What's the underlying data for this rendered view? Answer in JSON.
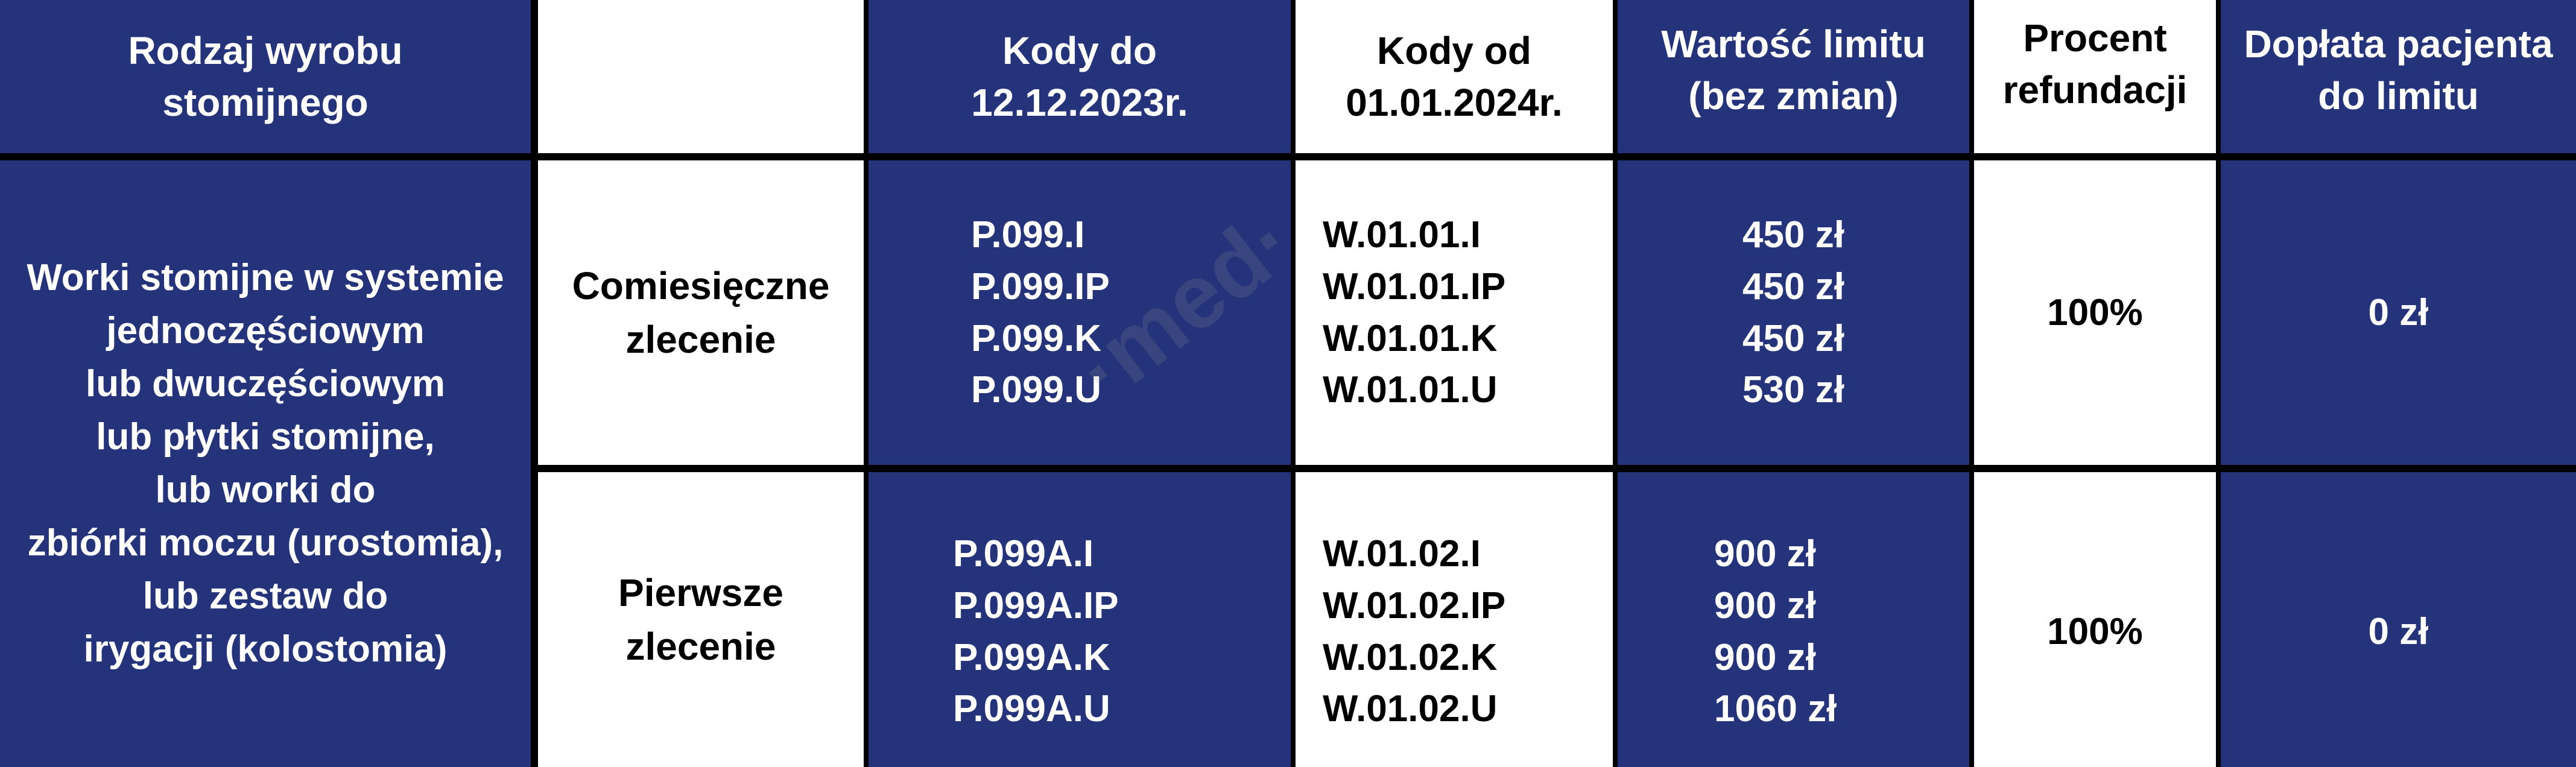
{
  "header": {
    "product_type": [
      "Rodzaj wyrobu",
      "stomijnego"
    ],
    "empty": "",
    "codes_old": [
      "Kody do",
      "12.12.2023r."
    ],
    "codes_new": [
      "Kody od",
      "01.01.2024r."
    ],
    "limit_value": [
      "Wartość limitu",
      "(bez zmian)"
    ],
    "refund_percent": [
      "Procent",
      "refundacji"
    ],
    "patient_copay": [
      "Dopłata pacjenta",
      "do limitu"
    ]
  },
  "product_description": [
    "Worki stomijne w systemie",
    "jednoczęściowym",
    "lub dwuczęściowym",
    "lub płytki stomijne,",
    "lub worki do",
    "zbiórki moczu (urostomia),",
    "lub zestaw do",
    "irygacji (kolostomia)"
  ],
  "rows": [
    {
      "order_type": [
        "Comiesięczne",
        "zlecenie"
      ],
      "codes_old": [
        "P.099.I",
        "P.099.IP",
        "P.099.K",
        "P.099.U"
      ],
      "codes_new": [
        "W.01.01.I",
        "W.01.01.IP",
        "W.01.01.K",
        "W.01.01.U"
      ],
      "limits": [
        "450 zł",
        "450 zł",
        "450 zł",
        "530 zł"
      ],
      "refund_percent": "100%",
      "patient_copay": "0 zł"
    },
    {
      "order_type": [
        "Pierwsze",
        "zlecenie"
      ],
      "codes_old": [
        "P.099A.I",
        "P.099A.IP",
        "P.099A.K",
        "P.099A.U"
      ],
      "codes_new": [
        "W.01.02.I",
        "W.01.02.IP",
        "W.01.02.K",
        "W.01.02.U"
      ],
      "limits": [
        "900 zł",
        "900 zł",
        "900 zł",
        "1060 zł"
      ],
      "refund_percent": "100%",
      "patient_copay": "0 zł"
    }
  ],
  "colors": {
    "blue": "#25347a",
    "white": "#ffffff",
    "border": "#000000"
  }
}
